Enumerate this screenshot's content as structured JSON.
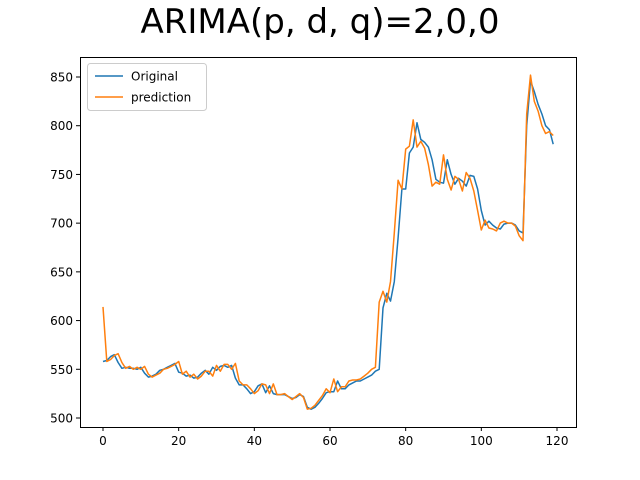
{
  "figure": {
    "title": "ARIMA(p, d, q)=2,0,0",
    "background": "#ffffff"
  },
  "chart_data": {
    "type": "line",
    "title": "ARIMA(p, d, q)=2,0,0",
    "xlabel": "",
    "ylabel": "",
    "xlim": [
      -6,
      125
    ],
    "ylim": [
      495,
      864
    ],
    "xticks": [
      0,
      20,
      40,
      60,
      80,
      100,
      120
    ],
    "yticks": [
      500,
      550,
      600,
      650,
      700,
      750,
      800,
      850
    ],
    "grid": false,
    "legend_position": "upper left",
    "x": [
      0,
      1,
      2,
      3,
      4,
      5,
      6,
      7,
      8,
      9,
      10,
      11,
      12,
      13,
      14,
      15,
      16,
      17,
      18,
      19,
      20,
      21,
      22,
      23,
      24,
      25,
      26,
      27,
      28,
      29,
      30,
      31,
      32,
      33,
      34,
      35,
      36,
      37,
      38,
      39,
      40,
      41,
      42,
      43,
      44,
      45,
      46,
      47,
      48,
      49,
      50,
      51,
      52,
      53,
      54,
      55,
      56,
      57,
      58,
      59,
      60,
      61,
      62,
      63,
      64,
      65,
      66,
      67,
      68,
      69,
      70,
      71,
      72,
      73,
      74,
      75,
      76,
      77,
      78,
      79,
      80,
      81,
      82,
      83,
      84,
      85,
      86,
      87,
      88,
      89,
      90,
      91,
      92,
      93,
      94,
      95,
      96,
      97,
      98,
      99,
      100,
      101,
      102,
      103,
      104,
      105,
      106,
      107,
      108,
      109,
      110,
      111,
      112,
      113,
      114,
      115,
      116,
      117,
      118,
      119
    ],
    "series": [
      {
        "name": "Original",
        "color": "#1f77b4",
        "values": [
          558,
          559,
          563,
          565,
          557,
          551,
          552,
          551,
          551,
          550,
          552,
          546,
          542,
          543,
          545,
          549,
          550,
          552,
          554,
          556,
          547,
          546,
          543,
          544,
          541,
          542,
          546,
          549,
          545,
          552,
          549,
          553,
          554,
          552,
          554,
          541,
          534,
          534,
          530,
          525,
          527,
          533,
          535,
          526,
          533,
          525,
          524,
          524,
          524,
          522,
          520,
          521,
          524,
          522,
          511,
          509,
          511,
          515,
          520,
          526,
          527,
          527,
          538,
          530,
          530,
          534,
          536,
          538,
          538,
          540,
          542,
          544,
          548,
          550,
          613,
          628,
          620,
          640,
          685,
          735,
          735,
          772,
          778,
          803,
          786,
          783,
          778,
          765,
          745,
          742,
          741,
          765,
          750,
          740,
          746,
          743,
          738,
          749,
          748,
          735,
          713,
          698,
          702,
          698,
          695,
          694,
          699,
          700,
          700,
          698,
          692,
          690,
          800,
          846,
          835,
          822,
          812,
          800,
          796,
          781
        ],
        "values_note": "estimated from pixels"
      },
      {
        "name": "prediction",
        "color": "#ff7f0e",
        "values": [
          614,
          558,
          560,
          564,
          566,
          557,
          551,
          553,
          550,
          552,
          550,
          553,
          545,
          542,
          544,
          546,
          550,
          551,
          553,
          555,
          558,
          545,
          548,
          542,
          545,
          540,
          543,
          548,
          548,
          543,
          554,
          548,
          555,
          555,
          550,
          556,
          538,
          534,
          534,
          530,
          525,
          528,
          535,
          534,
          525,
          535,
          524,
          524,
          525,
          522,
          519,
          522,
          525,
          521,
          509,
          510,
          513,
          518,
          523,
          530,
          526,
          540,
          527,
          532,
          532,
          538,
          539,
          539,
          540,
          543,
          546,
          550,
          552,
          619,
          630,
          619,
          640,
          690,
          744,
          735,
          776,
          779,
          806,
          778,
          784,
          777,
          760,
          738,
          742,
          740,
          770,
          745,
          734,
          748,
          745,
          733,
          752,
          746,
          733,
          713,
          693,
          703,
          695,
          694,
          692,
          700,
          702,
          700,
          700,
          697,
          687,
          682,
          812,
          852,
          825,
          815,
          800,
          792,
          794,
          790
        ]
      }
    ]
  },
  "axes": {
    "xtick_labels": [
      "0",
      "20",
      "40",
      "60",
      "80",
      "100",
      "120"
    ],
    "ytick_labels": [
      "500",
      "550",
      "600",
      "650",
      "700",
      "750",
      "800",
      "850"
    ]
  },
  "legend": {
    "items": [
      {
        "label": "Original",
        "color": "#1f77b4"
      },
      {
        "label": "prediction",
        "color": "#ff7f0e"
      }
    ]
  }
}
